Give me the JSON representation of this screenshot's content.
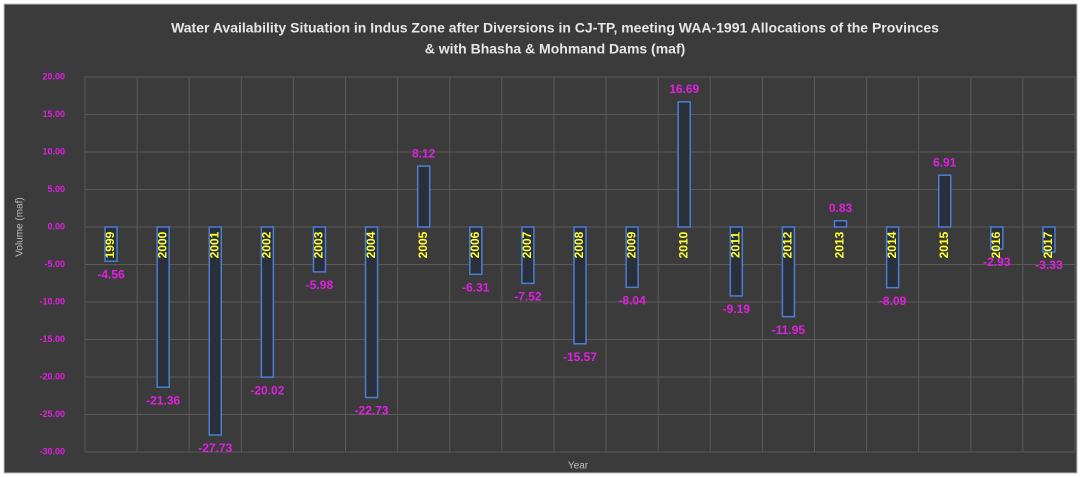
{
  "chart_data": {
    "type": "bar",
    "title": [
      "Water Availability Situation in Indus Zone after Diversions in CJ-TP,  meeting WAA-1991 Allocations of the Provinces",
      "& with Bhasha & Mohmand Dams (maf)"
    ],
    "x_label": "Year",
    "y_label": "Volume (maf)",
    "categories": [
      "1999",
      "2000",
      "2001",
      "2002",
      "2003",
      "2004",
      "2005",
      "2006",
      "2007",
      "2008",
      "2009",
      "2010",
      "2011",
      "2012",
      "2013",
      "2014",
      "2015",
      "2016",
      "2017"
    ],
    "values": [
      -4.56,
      -21.36,
      -27.73,
      -20.02,
      -5.98,
      -22.73,
      8.12,
      -6.31,
      -7.52,
      -15.57,
      -8.04,
      16.69,
      -9.19,
      -11.95,
      0.83,
      -8.09,
      6.91,
      -2.93,
      -3.33
    ],
    "color": "#4a7fd4",
    "ylim": [
      -30,
      20
    ],
    "yticks": [
      {
        "value": -30,
        "label": "-30.00"
      },
      {
        "value": -25,
        "label": "-25.00"
      },
      {
        "value": -20,
        "label": "-20.00"
      },
      {
        "value": -15,
        "label": "-15.00"
      },
      {
        "value": -10,
        "label": "-10.00"
      },
      {
        "value": -5,
        "label": "-5.00"
      },
      {
        "value": 0,
        "label": "0.00"
      },
      {
        "value": 5,
        "label": "5.00"
      },
      {
        "value": 10,
        "label": "10.00"
      },
      {
        "value": 15,
        "label": "15.00"
      },
      {
        "value": 20,
        "label": "20.00"
      }
    ],
    "grid": true
  }
}
